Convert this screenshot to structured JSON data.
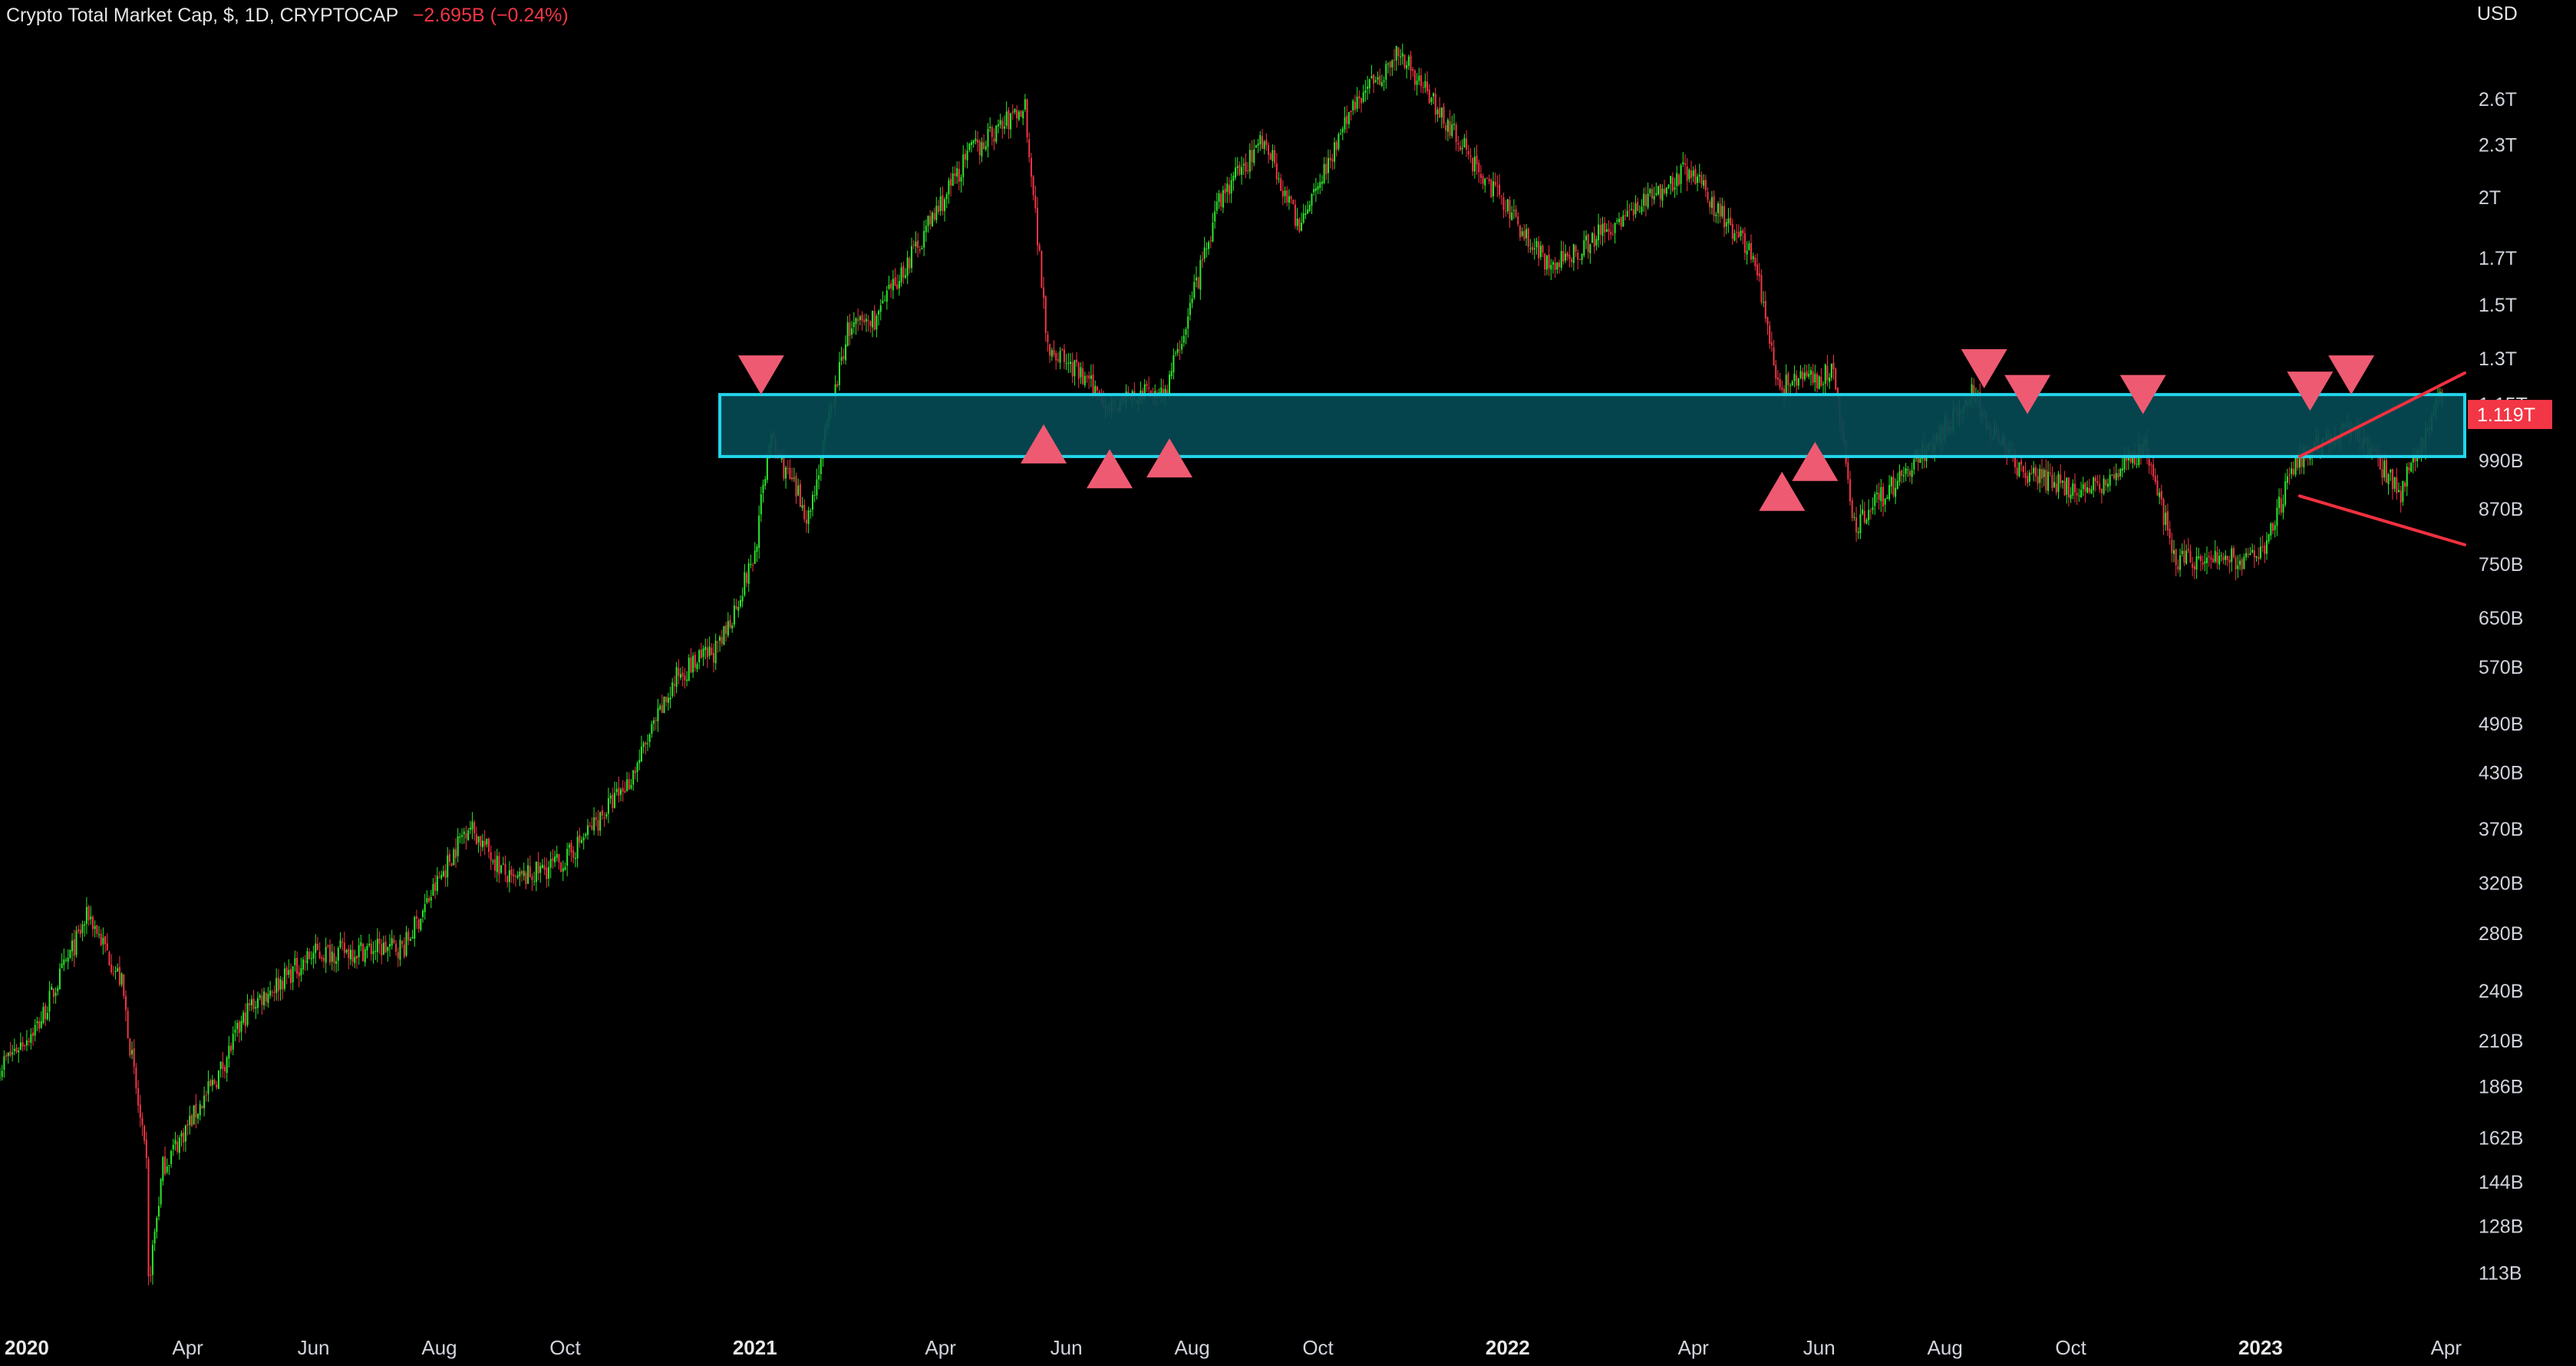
{
  "header": {
    "symbol": "Crypto Total Market Cap, $, 1D, CRYPTOCAP",
    "change": "−2.695B (−0.24%)"
  },
  "currency": "USD",
  "colors": {
    "background": "#000000",
    "up_candle": "#2ee82e",
    "down_candle": "#f23645",
    "zone_fill": "#064a54",
    "zone_border": "#22d6ec",
    "marker": "#ee5a72",
    "trendline": "#f0303f",
    "price_tag": "#f23645"
  },
  "chart_data": {
    "type": "candlestick",
    "timeframe": "1D",
    "y_scale": "log",
    "y_unit": "USD",
    "xlim": [
      "2020-01-01",
      "2023-04-10"
    ],
    "ylim_usd": [
      100000000000,
      3250000000000
    ],
    "y_ticks": [
      {
        "label": "2.6T",
        "value": 2600000000000
      },
      {
        "label": "2.3T",
        "value": 2300000000000
      },
      {
        "label": "2T",
        "value": 2000000000000
      },
      {
        "label": "1.7T",
        "value": 1700000000000
      },
      {
        "label": "1.5T",
        "value": 1500000000000
      },
      {
        "label": "1.3T",
        "value": 1300000000000
      },
      {
        "label": "1.15T",
        "value": 1150000000000
      },
      {
        "label": "990B",
        "value": 990000000000
      },
      {
        "label": "870B",
        "value": 870000000000
      },
      {
        "label": "750B",
        "value": 750000000000
      },
      {
        "label": "650B",
        "value": 650000000000
      },
      {
        "label": "570B",
        "value": 570000000000
      },
      {
        "label": "490B",
        "value": 490000000000
      },
      {
        "label": "430B",
        "value": 430000000000
      },
      {
        "label": "370B",
        "value": 370000000000
      },
      {
        "label": "320B",
        "value": 320000000000
      },
      {
        "label": "280B",
        "value": 280000000000
      },
      {
        "label": "240B",
        "value": 240000000000
      },
      {
        "label": "210B",
        "value": 210000000000
      },
      {
        "label": "186B",
        "value": 186000000000
      },
      {
        "label": "162B",
        "value": 162000000000
      },
      {
        "label": "144B",
        "value": 144000000000
      },
      {
        "label": "128B",
        "value": 128000000000
      },
      {
        "label": "113B",
        "value": 113000000000
      }
    ],
    "x_ticks": [
      {
        "label": "2020",
        "date": "2020-01-01",
        "year": true
      },
      {
        "label": "Apr",
        "date": "2020-04-01"
      },
      {
        "label": "Jun",
        "date": "2020-06-01"
      },
      {
        "label": "Aug",
        "date": "2020-08-01"
      },
      {
        "label": "Oct",
        "date": "2020-10-01"
      },
      {
        "label": "2021",
        "date": "2021-01-01",
        "year": true
      },
      {
        "label": "Apr",
        "date": "2021-04-01"
      },
      {
        "label": "Jun",
        "date": "2021-06-01"
      },
      {
        "label": "Aug",
        "date": "2021-08-01"
      },
      {
        "label": "Oct",
        "date": "2021-10-01"
      },
      {
        "label": "2022",
        "date": "2022-01-01",
        "year": true
      },
      {
        "label": "Apr",
        "date": "2022-04-01"
      },
      {
        "label": "Jun",
        "date": "2022-06-01"
      },
      {
        "label": "Aug",
        "date": "2022-08-01"
      },
      {
        "label": "Oct",
        "date": "2022-10-01"
      },
      {
        "label": "2023",
        "date": "2023-01-01",
        "year": true
      },
      {
        "label": "Apr",
        "date": "2023-04-01"
      }
    ],
    "close_path": [
      [
        "2020-01-01",
        196000000000
      ],
      [
        "2020-01-20",
        220000000000
      ],
      [
        "2020-02-13",
        295000000000
      ],
      [
        "2020-02-29",
        245000000000
      ],
      [
        "2020-03-12",
        150000000000
      ],
      [
        "2020-03-13",
        110000000000
      ],
      [
        "2020-03-20",
        150000000000
      ],
      [
        "2020-04-15",
        190000000000
      ],
      [
        "2020-05-01",
        230000000000
      ],
      [
        "2020-06-01",
        265000000000
      ],
      [
        "2020-07-15",
        270000000000
      ],
      [
        "2020-08-15",
        375000000000
      ],
      [
        "2020-09-05",
        320000000000
      ],
      [
        "2020-10-01",
        340000000000
      ],
      [
        "2020-11-01",
        420000000000
      ],
      [
        "2020-11-25",
        560000000000
      ],
      [
        "2020-12-15",
        600000000000
      ],
      [
        "2021-01-01",
        770000000000
      ],
      [
        "2021-01-08",
        1050000000000
      ],
      [
        "2021-01-27",
        850000000000
      ],
      [
        "2021-02-15",
        1400000000000
      ],
      [
        "2021-03-01",
        1450000000000
      ],
      [
        "2021-04-15",
        2250000000000
      ],
      [
        "2021-05-12",
        2550000000000
      ],
      [
        "2021-05-23",
        1350000000000
      ],
      [
        "2021-06-22",
        1150000000000
      ],
      [
        "2021-07-20",
        1200000000000
      ],
      [
        "2021-08-15",
        2000000000000
      ],
      [
        "2021-09-05",
        2350000000000
      ],
      [
        "2021-09-21",
        1850000000000
      ],
      [
        "2021-10-20",
        2600000000000
      ],
      [
        "2021-11-10",
        2950000000000
      ],
      [
        "2021-12-15",
        2200000000000
      ],
      [
        "2022-01-22",
        1650000000000
      ],
      [
        "2022-03-29",
        2150000000000
      ],
      [
        "2022-05-01",
        1700000000000
      ],
      [
        "2022-05-12",
        1200000000000
      ],
      [
        "2022-06-08",
        1250000000000
      ],
      [
        "2022-06-18",
        830000000000
      ],
      [
        "2022-07-20",
        1000000000000
      ],
      [
        "2022-08-14",
        1180000000000
      ],
      [
        "2022-09-07",
        950000000000
      ],
      [
        "2022-10-10",
        910000000000
      ],
      [
        "2022-11-06",
        1020000000000
      ],
      [
        "2022-11-21",
        760000000000
      ],
      [
        "2022-12-31",
        760000000000
      ],
      [
        "2023-01-20",
        1000000000000
      ],
      [
        "2023-02-15",
        1080000000000
      ],
      [
        "2023-03-10",
        910000000000
      ],
      [
        "2023-03-30",
        1180000000000
      ]
    ],
    "last_price": {
      "label": "1.119T",
      "value": 1119000000000
    },
    "annotations": {
      "zone": {
        "from_date": "2020-12-15",
        "to_date": "2023-04-10",
        "low": 1000000000000,
        "high": 1180000000000
      },
      "markers_down": [
        {
          "date": "2021-01-04",
          "value": 1180000000000
        },
        {
          "date": "2022-08-20",
          "value": 1200000000000
        },
        {
          "date": "2022-09-10",
          "value": 1120000000000
        },
        {
          "date": "2022-11-05",
          "value": 1120000000000
        },
        {
          "date": "2023-01-25",
          "value": 1130000000000
        },
        {
          "date": "2023-02-14",
          "value": 1180000000000
        }
      ],
      "markers_up": [
        {
          "date": "2021-05-21",
          "value": 1090000000000
        },
        {
          "date": "2021-06-22",
          "value": 1020000000000
        },
        {
          "date": "2021-07-21",
          "value": 1050000000000
        },
        {
          "date": "2022-05-14",
          "value": 960000000000
        },
        {
          "date": "2022-05-30",
          "value": 1040000000000
        }
      ],
      "trendlines": [
        {
          "from": [
            "2023-01-20",
            1000000000000
          ],
          "to": [
            "2023-04-10",
            1250000000000
          ]
        },
        {
          "from": [
            "2023-01-20",
            900000000000
          ],
          "to": [
            "2023-04-10",
            790000000000
          ]
        }
      ]
    }
  }
}
